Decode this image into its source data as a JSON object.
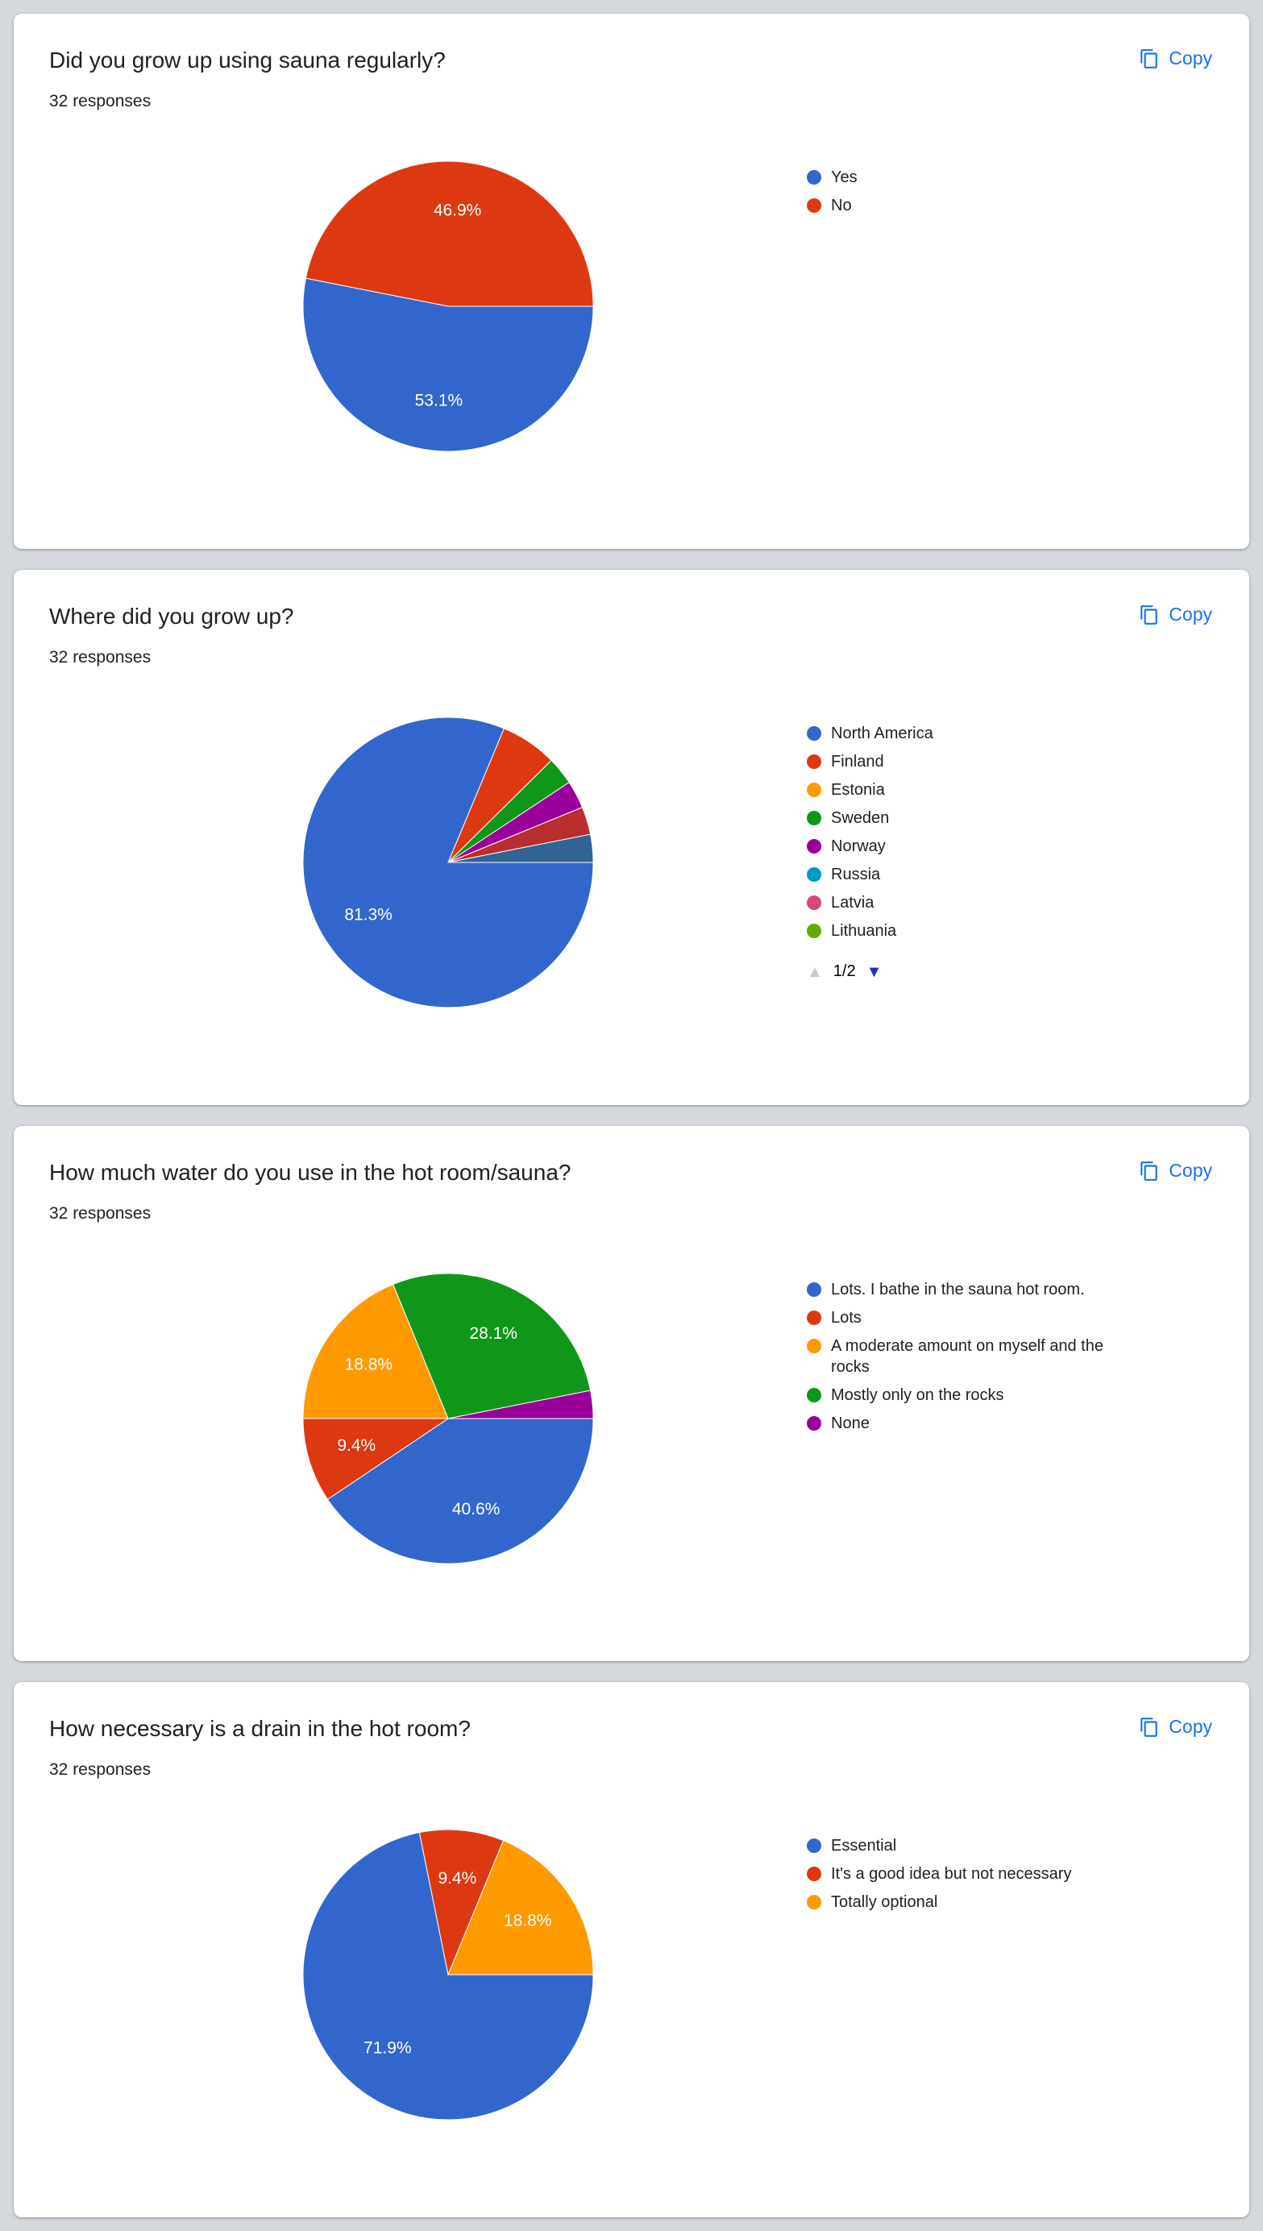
{
  "ui": {
    "background": "#d5d8dc",
    "card_background": "#ffffff",
    "copy_label": "Copy",
    "copy_color": "#1a73e8"
  },
  "chart_data": [
    {
      "type": "pie",
      "title": "Did you grow up using sauna regularly?",
      "responses_label": "32 responses",
      "legend_position": "right",
      "slices": [
        {
          "label": "Yes",
          "pct": 53.1,
          "color": "#3366CC",
          "pct_shown": true
        },
        {
          "label": "No",
          "pct": 46.9,
          "color": "#DC3912",
          "pct_shown": true
        }
      ],
      "legend": [
        {
          "label": "Yes",
          "color": "#3366CC"
        },
        {
          "label": "No",
          "color": "#DC3912"
        }
      ]
    },
    {
      "type": "pie",
      "title": "Where did you grow up?",
      "responses_label": "32 responses",
      "legend_position": "right",
      "slices": [
        {
          "label": "North America",
          "pct": 81.3,
          "color": "#3366CC",
          "pct_shown": true
        },
        {
          "label": "Finland",
          "pct": 6.3,
          "color": "#DC3912",
          "pct_shown": false
        },
        {
          "label": "Sweden",
          "pct": 3.1,
          "color": "#109618",
          "pct_shown": false
        },
        {
          "label": "Norway",
          "pct": 3.1,
          "color": "#990099",
          "pct_shown": false
        },
        {
          "label": "",
          "pct": 3.1,
          "color": "#B82E2E",
          "pct_shown": false
        },
        {
          "label": "",
          "pct": 3.1,
          "color": "#316395",
          "pct_shown": false
        }
      ],
      "legend": [
        {
          "label": "North America",
          "color": "#3366CC"
        },
        {
          "label": "Finland",
          "color": "#DC3912"
        },
        {
          "label": "Estonia",
          "color": "#FF9900"
        },
        {
          "label": "Sweden",
          "color": "#109618"
        },
        {
          "label": "Norway",
          "color": "#990099"
        },
        {
          "label": "Russia",
          "color": "#0099C6"
        },
        {
          "label": "Latvia",
          "color": "#DD4477"
        },
        {
          "label": "Lithuania",
          "color": "#66AA00"
        }
      ],
      "pagination": {
        "up_glyph": "▲",
        "label": "1/2",
        "down_glyph": "▼",
        "up_color": "#c4c7cb",
        "down_color": "#2431c7"
      }
    },
    {
      "type": "pie",
      "title": "How much water do you use in the hot room/sauna?",
      "responses_label": "32 responses",
      "legend_position": "right",
      "slices": [
        {
          "label": "Lots. I bathe in the sauna hot room.",
          "pct": 40.6,
          "color": "#3366CC",
          "pct_shown": true
        },
        {
          "label": "Lots",
          "pct": 9.4,
          "color": "#DC3912",
          "pct_shown": true
        },
        {
          "label": "A moderate amount on myself and the rocks",
          "pct": 18.8,
          "color": "#FF9900",
          "pct_shown": true
        },
        {
          "label": "Mostly only on the rocks",
          "pct": 28.1,
          "color": "#109618",
          "pct_shown": true
        },
        {
          "label": "None",
          "pct": 3.1,
          "color": "#990099",
          "pct_shown": false
        }
      ],
      "legend": [
        {
          "label": "Lots. I bathe in the sauna hot room.",
          "color": "#3366CC"
        },
        {
          "label": "Lots",
          "color": "#DC3912"
        },
        {
          "label": "A moderate amount on myself and the rocks",
          "color": "#FF9900"
        },
        {
          "label": "Mostly only on the rocks",
          "color": "#109618"
        },
        {
          "label": "None",
          "color": "#990099"
        }
      ]
    },
    {
      "type": "pie",
      "title": "How necessary is a drain in the hot room?",
      "responses_label": "32 responses",
      "legend_position": "right",
      "slices": [
        {
          "label": "Essential",
          "pct": 71.9,
          "color": "#3366CC",
          "pct_shown": true
        },
        {
          "label": "It's a good idea but not necessary",
          "pct": 9.4,
          "color": "#DC3912",
          "pct_shown": true
        },
        {
          "label": "Totally optional",
          "pct": 18.8,
          "color": "#FF9900",
          "pct_shown": true
        }
      ],
      "legend": [
        {
          "label": "Essential",
          "color": "#3366CC"
        },
        {
          "label": "It's a good idea but not necessary",
          "color": "#DC3912"
        },
        {
          "label": "Totally optional",
          "color": "#FF9900"
        }
      ]
    }
  ]
}
